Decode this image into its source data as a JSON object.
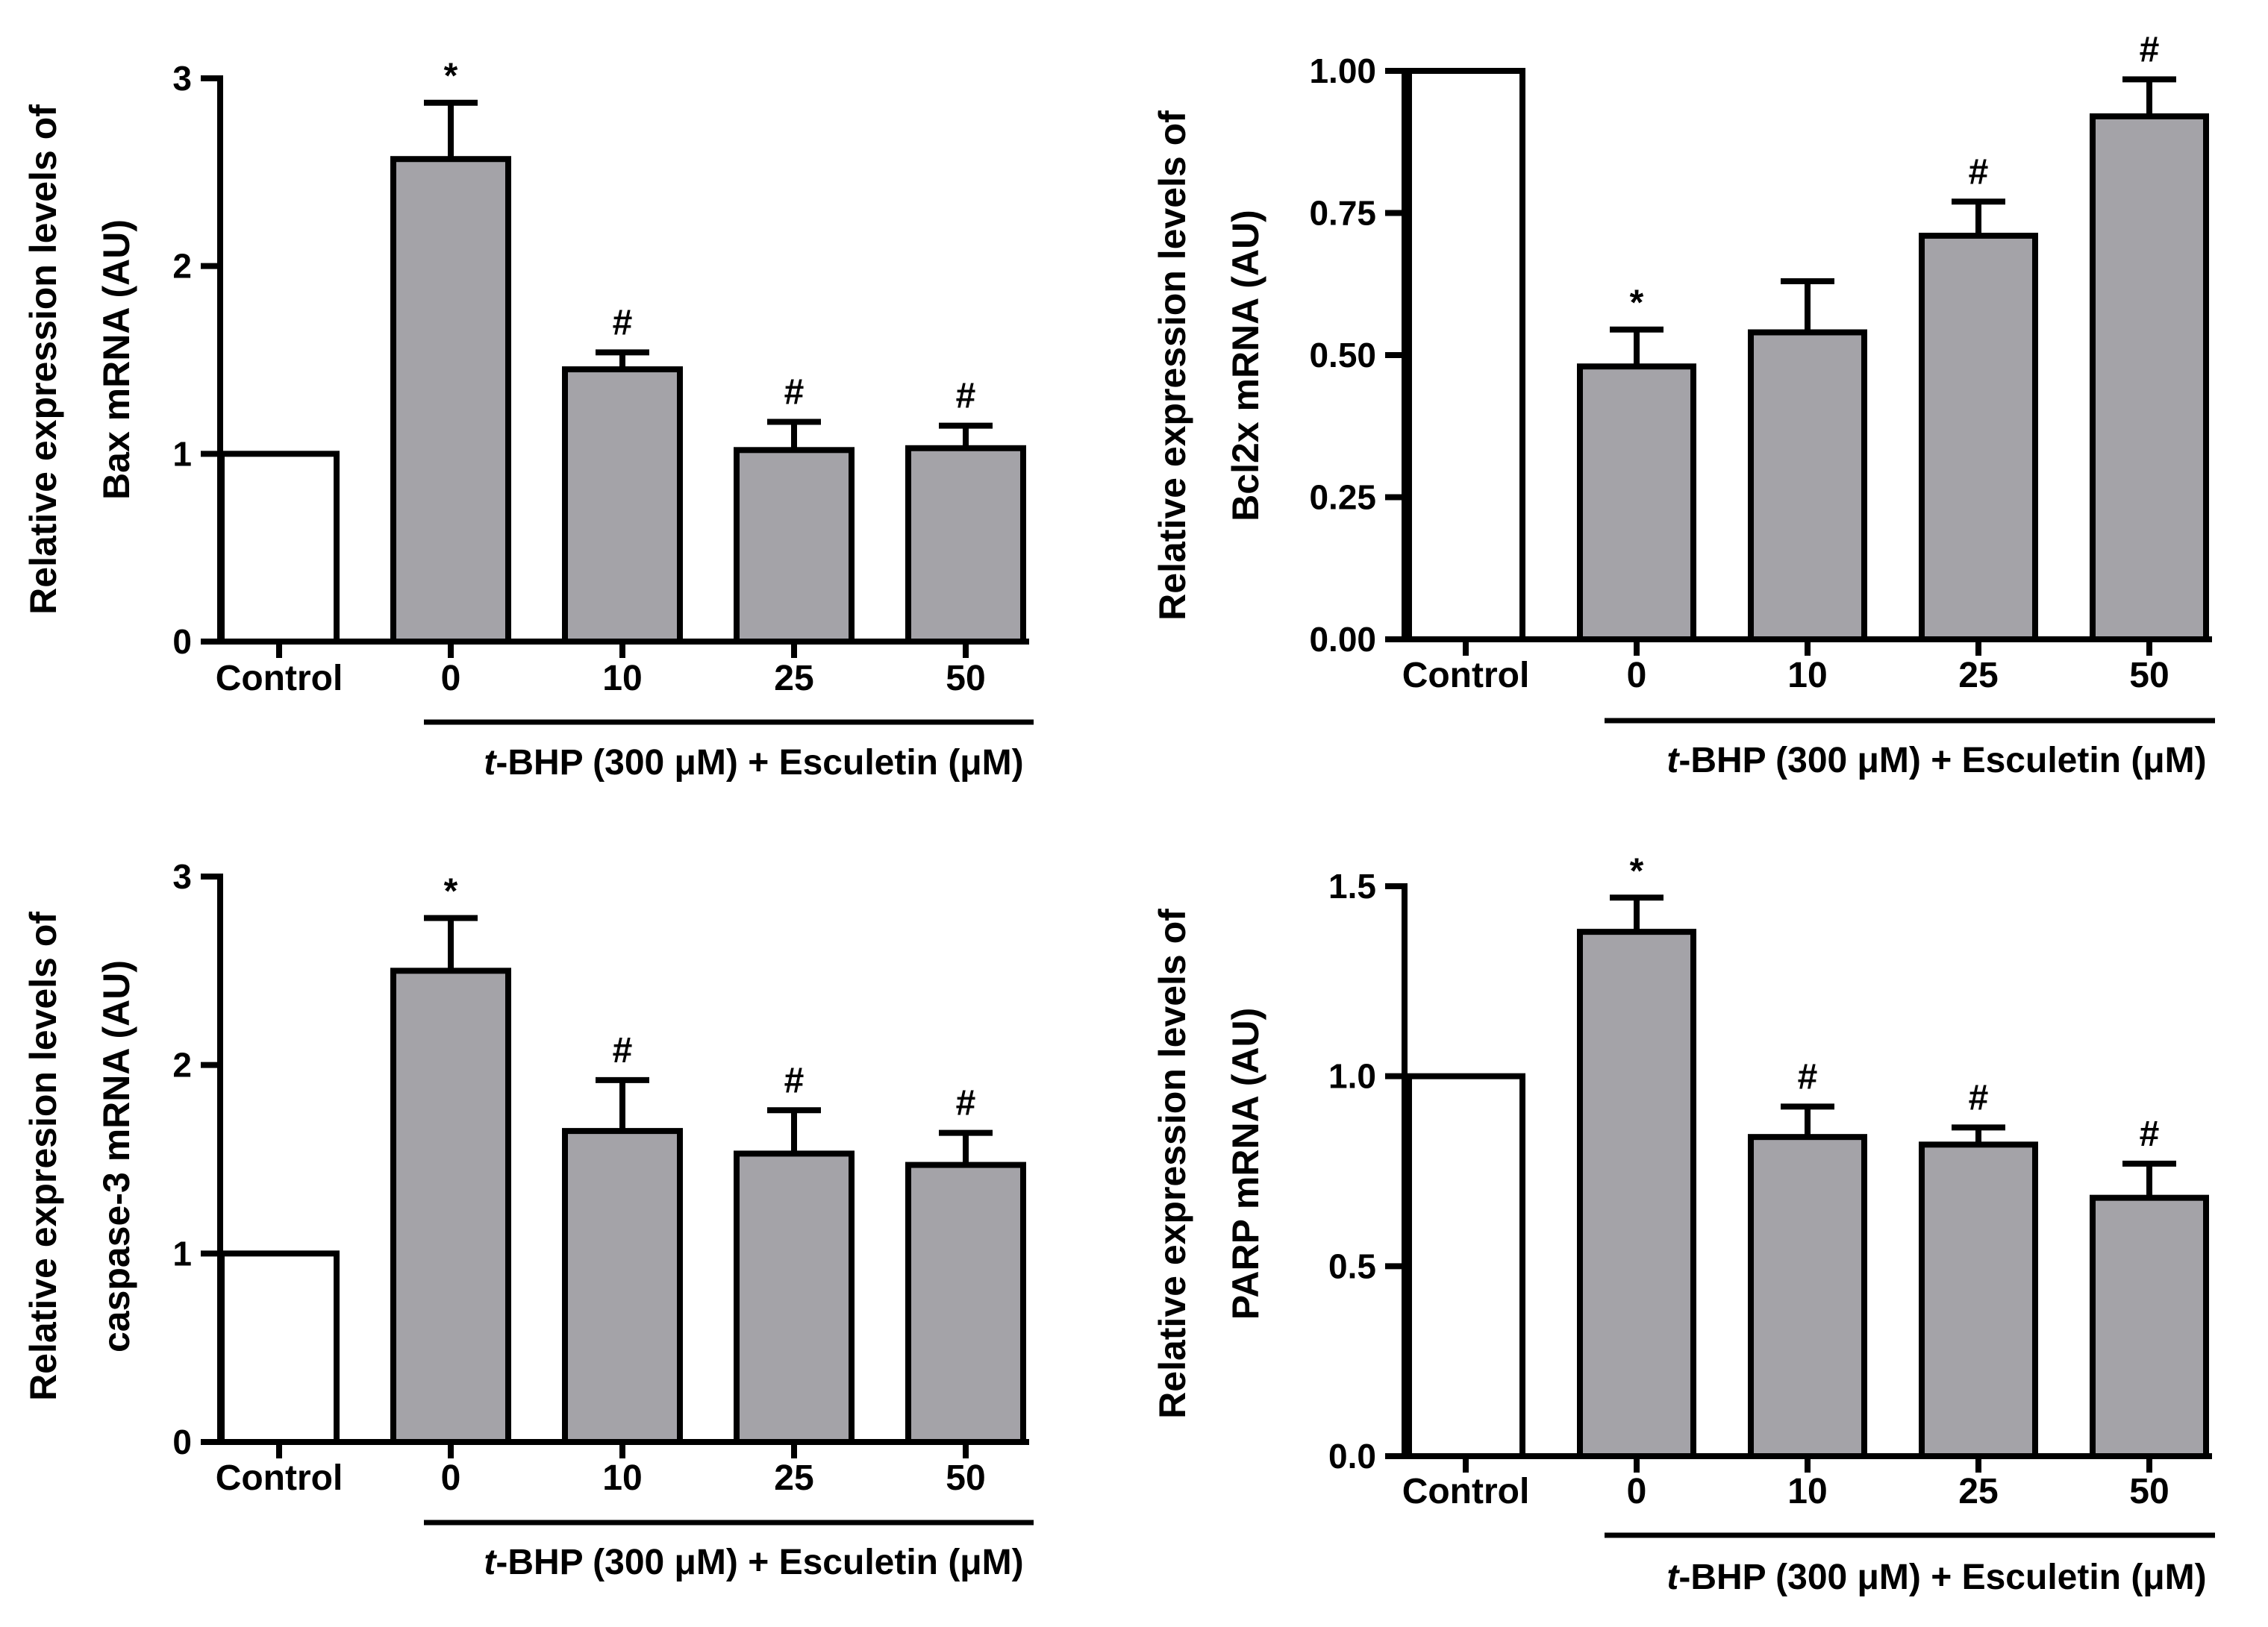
{
  "figure": {
    "group_label_prefix": "t",
    "group_label_rest": "-BHP (300 μM) + Esculetin (μM)"
  },
  "chart_data": [
    {
      "type": "bar",
      "ylabel_line1": "Relative expression levels of",
      "ylabel_line2": "Bax mRNA (AU)",
      "categories": [
        "Control",
        "0",
        "10",
        "25",
        "50"
      ],
      "values": [
        1.0,
        2.57,
        1.45,
        1.02,
        1.03
      ],
      "errors": [
        0.0,
        0.3,
        0.09,
        0.15,
        0.12
      ],
      "significance": [
        "",
        "*",
        "#",
        "#",
        "#"
      ],
      "bar_fill": [
        "#ffffff",
        "#a4a3a8",
        "#a4a3a8",
        "#a4a3a8",
        "#a4a3a8"
      ],
      "ylim": [
        0,
        3
      ],
      "yticks": [
        0,
        1,
        2,
        3
      ],
      "ytick_labels": [
        "0",
        "1",
        "2",
        "3"
      ],
      "group_label": "t-BHP (300 μM) + Esculetin (μM)"
    },
    {
      "type": "bar",
      "ylabel_line1": "Relative expression levels of",
      "ylabel_line2": "Bcl2x mRNA (AU)",
      "categories": [
        "Control",
        "0",
        "10",
        "25",
        "50"
      ],
      "values": [
        1.0,
        0.48,
        0.54,
        0.71,
        0.92
      ],
      "errors": [
        0.0,
        0.065,
        0.09,
        0.06,
        0.065
      ],
      "significance": [
        "",
        "*",
        "",
        "#",
        "#"
      ],
      "bar_fill": [
        "#ffffff",
        "#a4a3a8",
        "#a4a3a8",
        "#a4a3a8",
        "#a4a3a8"
      ],
      "ylim": [
        0,
        1.0
      ],
      "yticks": [
        0,
        0.25,
        0.5,
        0.75,
        1.0
      ],
      "ytick_labels": [
        "0.00",
        "0.25",
        "0.50",
        "0.75",
        "1.00"
      ],
      "group_label": "t-BHP (300 μM) + Esculetin (μM)"
    },
    {
      "type": "bar",
      "ylabel_line1": "Relative expresion levels of",
      "ylabel_line2": "caspase-3 mRNA (AU)",
      "categories": [
        "Control",
        "0",
        "10",
        "25",
        "50"
      ],
      "values": [
        1.0,
        2.5,
        1.65,
        1.53,
        1.47
      ],
      "errors": [
        0.0,
        0.28,
        0.27,
        0.23,
        0.17
      ],
      "significance": [
        "",
        "*",
        "#",
        "#",
        "#"
      ],
      "bar_fill": [
        "#ffffff",
        "#a4a3a8",
        "#a4a3a8",
        "#a4a3a8",
        "#a4a3a8"
      ],
      "ylim": [
        0,
        3
      ],
      "yticks": [
        0,
        1,
        2,
        3
      ],
      "ytick_labels": [
        "0",
        "1",
        "2",
        "3"
      ],
      "group_label": "t-BHP (300 μM) + Esculetin (μM)"
    },
    {
      "type": "bar",
      "ylabel_line1": "Relative expression levels of",
      "ylabel_line2": "PARP mRNA (AU)",
      "categories": [
        "Control",
        "0",
        "10",
        "25",
        "50"
      ],
      "values": [
        1.0,
        1.38,
        0.84,
        0.82,
        0.68
      ],
      "errors": [
        0.0,
        0.09,
        0.08,
        0.045,
        0.09
      ],
      "significance": [
        "",
        "*",
        "#",
        "#",
        "#"
      ],
      "bar_fill": [
        "#ffffff",
        "#a4a3a8",
        "#a4a3a8",
        "#a4a3a8",
        "#a4a3a8"
      ],
      "ylim": [
        0,
        1.5
      ],
      "yticks": [
        0,
        0.5,
        1.0,
        1.5
      ],
      "ytick_labels": [
        "0.0",
        "0.5",
        "1.0",
        "1.5"
      ],
      "group_label": "t-BHP (300 μM) + Esculetin (μM)"
    }
  ]
}
